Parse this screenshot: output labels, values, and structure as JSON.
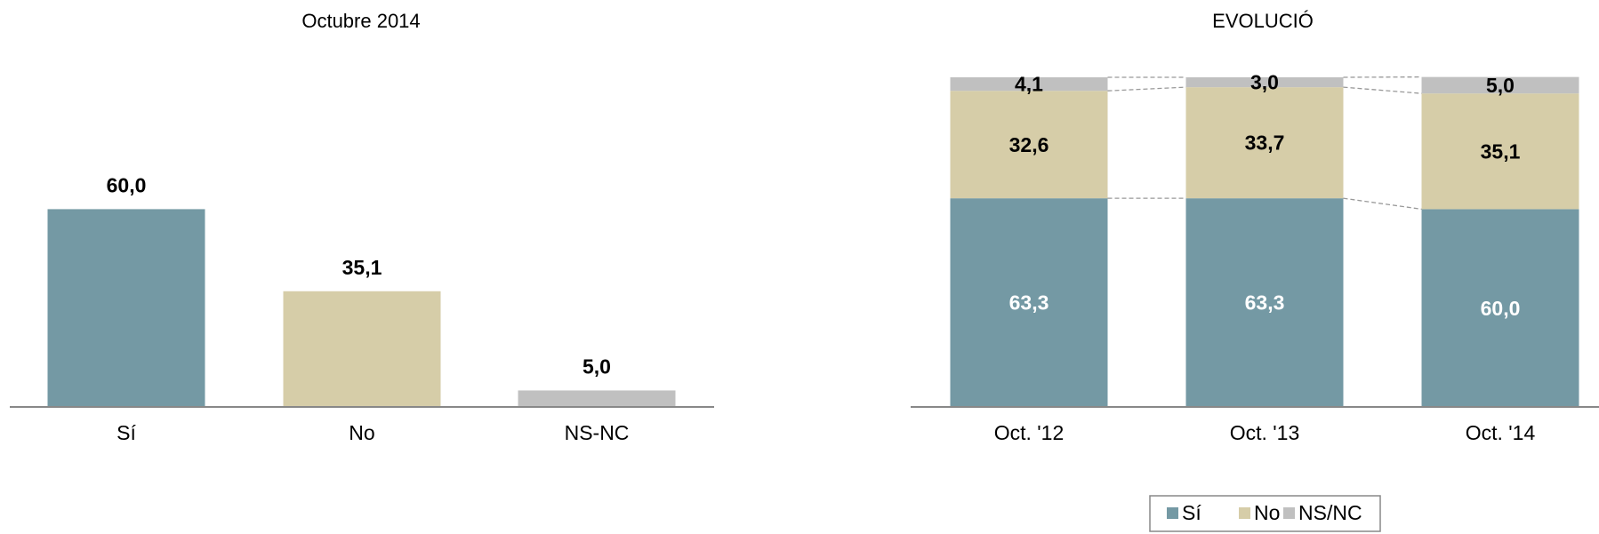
{
  "chart_data": [
    {
      "type": "bar",
      "title": "Octubre 2014",
      "categories": [
        "Sí",
        "No",
        "NS-NC"
      ],
      "values": [
        60.0,
        35.1,
        5.0
      ],
      "value_labels": [
        "60,0",
        "35,1",
        "5,0"
      ],
      "colors": [
        "#7499a4",
        "#d6cda8",
        "#c0c0c0"
      ],
      "ylim": [
        0,
        100
      ]
    },
    {
      "type": "stacked_bar",
      "title": "EVOLUCIÓ",
      "categories": [
        "Oct. '12",
        "Oct. '13",
        "Oct. '14"
      ],
      "series": [
        {
          "name": "Sí",
          "color": "#7499a4",
          "values": [
            63.3,
            63.3,
            60.0
          ],
          "value_labels": [
            "63,3",
            "63,3",
            "60,0"
          ]
        },
        {
          "name": "No",
          "color": "#d6cda8",
          "values": [
            32.6,
            33.7,
            35.1
          ],
          "value_labels": [
            "32,6",
            "33,7",
            "35,1"
          ]
        },
        {
          "name": "NS/NC",
          "color": "#c0c0c0",
          "values": [
            4.1,
            3.0,
            5.0
          ],
          "value_labels": [
            "4,1",
            "3,0",
            "5,0"
          ]
        }
      ],
      "ylim": [
        0,
        100
      ],
      "legend": "bottom"
    }
  ]
}
